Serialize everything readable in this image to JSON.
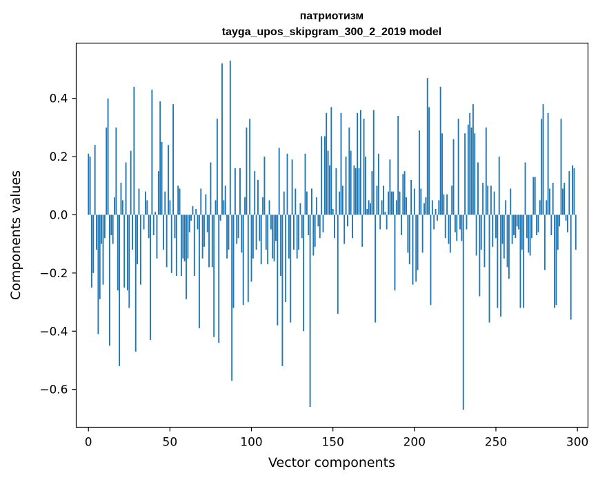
{
  "chart_data": {
    "type": "bar",
    "title": "патриотизм",
    "subtitle": "tayga_upos_skipgram_300_2_2019 model",
    "xlabel": "Vector components",
    "ylabel": "Components values",
    "xlim": [
      -7.5,
      306.5
    ],
    "ylim": [
      -0.73,
      0.59
    ],
    "xticks": [
      0,
      50,
      100,
      150,
      200,
      250,
      300
    ],
    "xtick_labels": [
      "0",
      "50",
      "100",
      "150",
      "200",
      "250",
      "300"
    ],
    "yticks": [
      -0.6,
      -0.4,
      -0.2,
      0.0,
      0.2,
      0.4
    ],
    "ytick_labels": [
      "−0.6",
      "−0.4",
      "−0.2",
      "0.0",
      "0.2",
      "0.4"
    ],
    "bar_color": "#1f77b4",
    "grid": false,
    "legend": "none",
    "values": [
      0.21,
      0.2,
      -0.25,
      -0.2,
      0.24,
      -0.12,
      -0.41,
      -0.29,
      -0.1,
      -0.24,
      -0.08,
      0.3,
      0.4,
      -0.45,
      -0.07,
      -0.1,
      0.06,
      0.3,
      -0.26,
      -0.52,
      0.11,
      0.05,
      -0.25,
      0.18,
      -0.26,
      -0.32,
      0.22,
      -0.12,
      0.44,
      -0.47,
      -0.17,
      0.09,
      -0.24,
      0.0,
      -0.05,
      0.08,
      0.05,
      -0.08,
      -0.43,
      0.43,
      -0.07,
      0.01,
      -0.15,
      0.15,
      0.39,
      0.25,
      -0.12,
      0.08,
      -0.18,
      0.24,
      0.05,
      -0.2,
      0.38,
      -0.08,
      -0.21,
      0.1,
      0.09,
      -0.21,
      -0.15,
      -0.16,
      -0.29,
      -0.15,
      -0.06,
      -0.02,
      0.03,
      -0.21,
      0.02,
      -0.05,
      -0.39,
      0.09,
      -0.15,
      -0.11,
      0.07,
      -0.06,
      -0.18,
      0.18,
      -0.18,
      -0.42,
      0.05,
      0.33,
      -0.44,
      -0.02,
      0.52,
      0.05,
      0.1,
      -0.15,
      -0.12,
      0.53,
      -0.57,
      -0.32,
      0.16,
      -0.1,
      -0.08,
      0.16,
      -0.13,
      -0.31,
      0.06,
      0.3,
      -0.3,
      0.33,
      -0.23,
      -0.15,
      0.15,
      -0.12,
      0.12,
      -0.09,
      -0.17,
      0.06,
      0.2,
      -0.12,
      -0.17,
      0.05,
      -0.05,
      -0.15,
      -0.16,
      -0.09,
      -0.38,
      0.23,
      -0.21,
      -0.52,
      0.08,
      -0.3,
      0.21,
      -0.15,
      -0.37,
      0.19,
      -0.12,
      0.09,
      -0.15,
      -0.12,
      0.04,
      -0.08,
      -0.4,
      0.21,
      0.08,
      -0.07,
      -0.66,
      0.09,
      -0.14,
      -0.11,
      0.06,
      -0.04,
      -0.08,
      0.27,
      -0.06,
      0.27,
      0.35,
      0.22,
      0.17,
      0.37,
      0.02,
      -0.08,
      0.16,
      -0.34,
      0.08,
      0.35,
      0.1,
      -0.1,
      0.2,
      -0.04,
      0.3,
      0.22,
      -0.08,
      0.17,
      0.16,
      0.35,
      0.16,
      0.36,
      -0.11,
      0.33,
      0.2,
      0.02,
      0.05,
      0.04,
      0.15,
      0.36,
      -0.37,
      0.1,
      0.21,
      -0.05,
      0.05,
      0.1,
      0.01,
      -0.05,
      0.08,
      0.19,
      0.08,
      0.08,
      -0.26,
      0.05,
      0.34,
      0.08,
      -0.07,
      0.14,
      0.15,
      0.06,
      -0.13,
      -0.17,
      0.12,
      -0.24,
      0.09,
      -0.23,
      -0.19,
      0.29,
      0.09,
      -0.13,
      0.04,
      0.06,
      0.47,
      0.37,
      -0.31,
      0.05,
      -0.05,
      0.02,
      -0.02,
      0.05,
      0.44,
      0.28,
      0.07,
      -0.08,
      0.07,
      -0.1,
      -0.13,
      0.1,
      0.26,
      -0.06,
      -0.09,
      0.33,
      -0.05,
      -0.09,
      -0.67,
      0.28,
      -0.05,
      0.31,
      0.35,
      0.3,
      0.38,
      0.28,
      -0.14,
      0.18,
      -0.28,
      -0.12,
      0.11,
      -0.18,
      0.3,
      0.1,
      -0.37,
      0.1,
      -0.11,
      0.08,
      -0.08,
      -0.32,
      0.2,
      -0.35,
      -0.1,
      -0.15,
      0.05,
      -0.18,
      -0.22,
      0.09,
      -0.1,
      -0.07,
      -0.08,
      -0.04,
      -0.05,
      -0.32,
      -0.12,
      -0.32,
      0.18,
      -0.08,
      -0.13,
      -0.14,
      -0.08,
      0.13,
      0.13,
      -0.07,
      -0.06,
      0.05,
      0.33,
      0.38,
      -0.19,
      0.05,
      0.35,
      0.09,
      -0.07,
      0.11,
      -0.32,
      -0.31,
      -0.12,
      -0.04,
      0.33,
      0.09,
      0.11,
      -0.02,
      -0.06,
      0.15,
      -0.36,
      0.17,
      0.16,
      -0.12
    ]
  }
}
